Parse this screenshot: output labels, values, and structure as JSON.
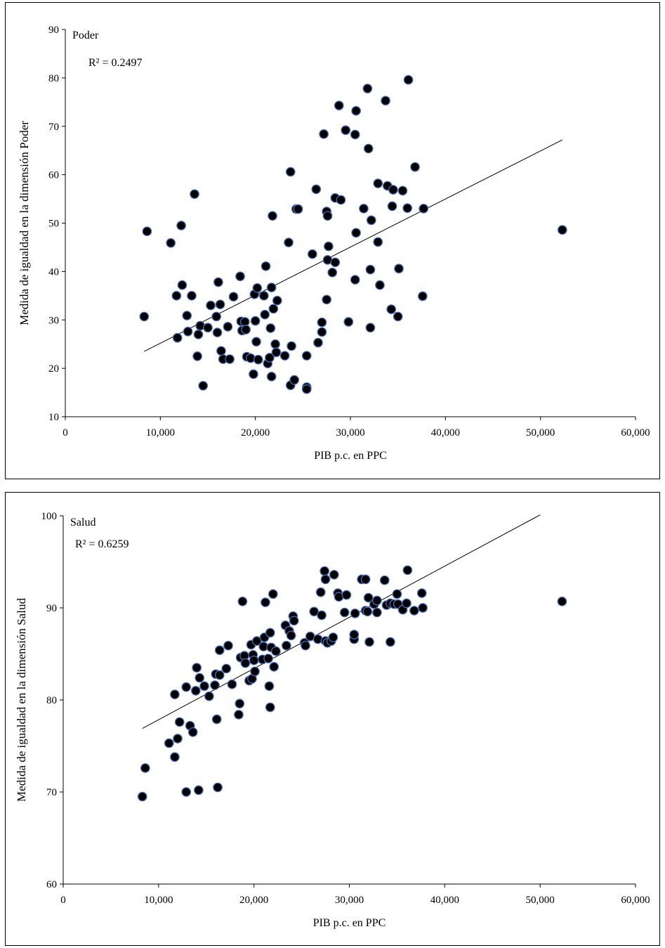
{
  "chart_data": [
    {
      "type": "scatter",
      "panel_label": "Poder",
      "r2_label": "R² = 0.2497",
      "xlabel": "PIB p.c. en PPC",
      "ylabel": "Medida de igualdad en la dimensión Poder",
      "xlim": [
        0,
        60000
      ],
      "ylim": [
        10,
        90
      ],
      "xticks": [
        0,
        10000,
        20000,
        30000,
        40000,
        50000,
        60000
      ],
      "xtick_labels": [
        "0",
        "10,000",
        "20,000",
        "30,000",
        "40,000",
        "50,000",
        "60,000"
      ],
      "yticks": [
        10,
        20,
        30,
        40,
        50,
        60,
        70,
        80,
        90
      ],
      "ytick_labels": [
        "10",
        "20",
        "30",
        "40",
        "50",
        "60",
        "70",
        "80",
        "90"
      ],
      "trendline": [
        [
          8300,
          23.5
        ],
        [
          52300,
          67.2
        ]
      ],
      "marker_color": "#000000",
      "marker_edge": "#4a6fb5",
      "points": [
        [
          8300,
          30.7
        ],
        [
          8600,
          48.3
        ],
        [
          11100,
          45.9
        ],
        [
          11700,
          35
        ],
        [
          11800,
          26.3
        ],
        [
          12200,
          49.5
        ],
        [
          12300,
          37.2
        ],
        [
          12800,
          30.9
        ],
        [
          12900,
          27.6
        ],
        [
          13300,
          35
        ],
        [
          13600,
          56
        ],
        [
          13900,
          22.5
        ],
        [
          14000,
          27
        ],
        [
          14200,
          28.8
        ],
        [
          14500,
          16.4
        ],
        [
          15000,
          28.4
        ],
        [
          15300,
          33
        ],
        [
          15900,
          30.7
        ],
        [
          16000,
          27.4
        ],
        [
          16100,
          37.8
        ],
        [
          16300,
          33.2
        ],
        [
          16400,
          23.6
        ],
        [
          16600,
          21.9
        ],
        [
          17100,
          28.6
        ],
        [
          17300,
          21.9
        ],
        [
          17700,
          34.8
        ],
        [
          18400,
          39
        ],
        [
          18500,
          29.7
        ],
        [
          18600,
          27.8
        ],
        [
          18900,
          29.6
        ],
        [
          19000,
          28
        ],
        [
          19100,
          22.4
        ],
        [
          19500,
          22.1
        ],
        [
          19800,
          18.8
        ],
        [
          19900,
          35.3
        ],
        [
          20000,
          29.8
        ],
        [
          20100,
          25.5
        ],
        [
          20200,
          36.6
        ],
        [
          20300,
          21.8
        ],
        [
          20900,
          35
        ],
        [
          21000,
          31.1
        ],
        [
          21100,
          41.1
        ],
        [
          21300,
          21
        ],
        [
          21500,
          22.2
        ],
        [
          21600,
          28.3
        ],
        [
          21700,
          36.7
        ],
        [
          21700,
          18.3
        ],
        [
          21800,
          51.5
        ],
        [
          21900,
          32.3
        ],
        [
          22100,
          25
        ],
        [
          22200,
          23.3
        ],
        [
          22300,
          34
        ],
        [
          23100,
          22.6
        ],
        [
          23500,
          46
        ],
        [
          23800,
          24.6
        ],
        [
          23700,
          60.6
        ],
        [
          23700,
          16.5
        ],
        [
          24100,
          17.6
        ],
        [
          24300,
          52.9
        ],
        [
          24500,
          52.9
        ],
        [
          25400,
          22.6
        ],
        [
          25400,
          16.1
        ],
        [
          25400,
          15.7
        ],
        [
          26000,
          43.6
        ],
        [
          26400,
          57
        ],
        [
          26600,
          25.3
        ],
        [
          27000,
          29.5
        ],
        [
          27000,
          27.5
        ],
        [
          27200,
          68.4
        ],
        [
          27500,
          34.2
        ],
        [
          27500,
          52.4
        ],
        [
          27600,
          51.5
        ],
        [
          27700,
          45.2
        ],
        [
          27600,
          42.4
        ],
        [
          28100,
          39.8
        ],
        [
          28400,
          55.2
        ],
        [
          28400,
          41.9
        ],
        [
          28800,
          74.3
        ],
        [
          29000,
          54.8
        ],
        [
          29500,
          69.2
        ],
        [
          29800,
          29.6
        ],
        [
          30500,
          38.3
        ],
        [
          30500,
          68.3
        ],
        [
          30600,
          48
        ],
        [
          30600,
          73.2
        ],
        [
          31400,
          53
        ],
        [
          31900,
          65.4
        ],
        [
          31800,
          77.8
        ],
        [
          32100,
          40.4
        ],
        [
          32100,
          28.4
        ],
        [
          32200,
          50.6
        ],
        [
          32900,
          58.2
        ],
        [
          32900,
          46.1
        ],
        [
          33100,
          37.2
        ],
        [
          33700,
          75.3
        ],
        [
          33900,
          57.7
        ],
        [
          34300,
          32.2
        ],
        [
          34400,
          53.5
        ],
        [
          34500,
          56.9
        ],
        [
          35000,
          30.7
        ],
        [
          35100,
          40.6
        ],
        [
          35500,
          56.7
        ],
        [
          36000,
          53.1
        ],
        [
          36100,
          79.6
        ],
        [
          36800,
          61.6
        ],
        [
          37600,
          34.9
        ],
        [
          37700,
          53
        ],
        [
          52300,
          48.6
        ]
      ]
    },
    {
      "type": "scatter",
      "panel_label": "Salud",
      "r2_label": "R² = 0.6259",
      "xlabel": "PIB p.c. en PPC",
      "ylabel": "Medida de igualdad en la dimensión Salud",
      "xlim": [
        0,
        60000
      ],
      "ylim": [
        60,
        100
      ],
      "xticks": [
        0,
        10000,
        20000,
        30000,
        40000,
        50000,
        60000
      ],
      "xtick_labels": [
        "0",
        "10,000",
        "20,000",
        "30,000",
        "40,000",
        "50,000",
        "60,000"
      ],
      "yticks": [
        60,
        70,
        80,
        90,
        100
      ],
      "ytick_labels": [
        "60",
        "70",
        "80",
        "90",
        "100"
      ],
      "trendline": [
        [
          8300,
          76.9
        ],
        [
          50000,
          100.1
        ]
      ],
      "marker_color": "#000000",
      "marker_edge": "#4a6fb5",
      "points": [
        [
          8300,
          69.5
        ],
        [
          8600,
          72.6
        ],
        [
          11100,
          75.3
        ],
        [
          11700,
          73.8
        ],
        [
          11700,
          80.6
        ],
        [
          12000,
          75.8
        ],
        [
          12200,
          77.6
        ],
        [
          12900,
          70
        ],
        [
          12900,
          81.4
        ],
        [
          13300,
          77.2
        ],
        [
          13600,
          76.5
        ],
        [
          13900,
          81
        ],
        [
          14000,
          83.5
        ],
        [
          14200,
          70.2
        ],
        [
          14300,
          82.4
        ],
        [
          14800,
          81.5
        ],
        [
          15300,
          80.4
        ],
        [
          15900,
          81.6
        ],
        [
          16000,
          82.8
        ],
        [
          16100,
          77.9
        ],
        [
          16200,
          70.5
        ],
        [
          16400,
          85.4
        ],
        [
          16400,
          82.7
        ],
        [
          17100,
          83.4
        ],
        [
          17300,
          85.9
        ],
        [
          17700,
          81.7
        ],
        [
          18400,
          78.4
        ],
        [
          18500,
          79.6
        ],
        [
          18600,
          84.6
        ],
        [
          18800,
          90.7
        ],
        [
          19000,
          84.8
        ],
        [
          19100,
          84
        ],
        [
          19500,
          82.1
        ],
        [
          19700,
          86
        ],
        [
          19800,
          82.3
        ],
        [
          19900,
          84.9
        ],
        [
          20000,
          84.3
        ],
        [
          20100,
          83.1
        ],
        [
          20300,
          86.4
        ],
        [
          20900,
          84.4
        ],
        [
          21000,
          85.8
        ],
        [
          21100,
          86.8
        ],
        [
          21200,
          90.6
        ],
        [
          21500,
          84.5
        ],
        [
          21600,
          81.5
        ],
        [
          21700,
          79.2
        ],
        [
          21700,
          87.3
        ],
        [
          21800,
          85.7
        ],
        [
          22000,
          91.5
        ],
        [
          22100,
          83.6
        ],
        [
          22300,
          85.3
        ],
        [
          23300,
          88.1
        ],
        [
          23400,
          85.9
        ],
        [
          23700,
          87.5
        ],
        [
          23900,
          87
        ],
        [
          24100,
          89.1
        ],
        [
          24200,
          88.6
        ],
        [
          25300,
          86.2
        ],
        [
          25400,
          85.9
        ],
        [
          25900,
          86.9
        ],
        [
          26300,
          89.6
        ],
        [
          26700,
          86.6
        ],
        [
          27000,
          91.7
        ],
        [
          27100,
          89.2
        ],
        [
          27400,
          94
        ],
        [
          27500,
          93.1
        ],
        [
          27500,
          86.4
        ],
        [
          27700,
          86.2
        ],
        [
          28100,
          86.4
        ],
        [
          28300,
          86.8
        ],
        [
          28400,
          93.6
        ],
        [
          28800,
          91.6
        ],
        [
          28900,
          91.2
        ],
        [
          29500,
          89.5
        ],
        [
          29700,
          91.4
        ],
        [
          30500,
          86.6
        ],
        [
          30500,
          87.1
        ],
        [
          30600,
          89.4
        ],
        [
          31300,
          93.1
        ],
        [
          31700,
          93.1
        ],
        [
          31700,
          89.7
        ],
        [
          31900,
          89.6
        ],
        [
          32000,
          91.1
        ],
        [
          32100,
          86.3
        ],
        [
          32600,
          90.4
        ],
        [
          32900,
          89.5
        ],
        [
          32900,
          90.8
        ],
        [
          33700,
          93
        ],
        [
          33900,
          90.3
        ],
        [
          34300,
          90.5
        ],
        [
          34300,
          86.3
        ],
        [
          34700,
          90.4
        ],
        [
          35000,
          91.5
        ],
        [
          35100,
          90.4
        ],
        [
          35600,
          89.8
        ],
        [
          36000,
          90.5
        ],
        [
          36100,
          94.1
        ],
        [
          36800,
          89.7
        ],
        [
          37600,
          91.6
        ],
        [
          37700,
          90
        ],
        [
          52300,
          90.7
        ]
      ]
    }
  ]
}
